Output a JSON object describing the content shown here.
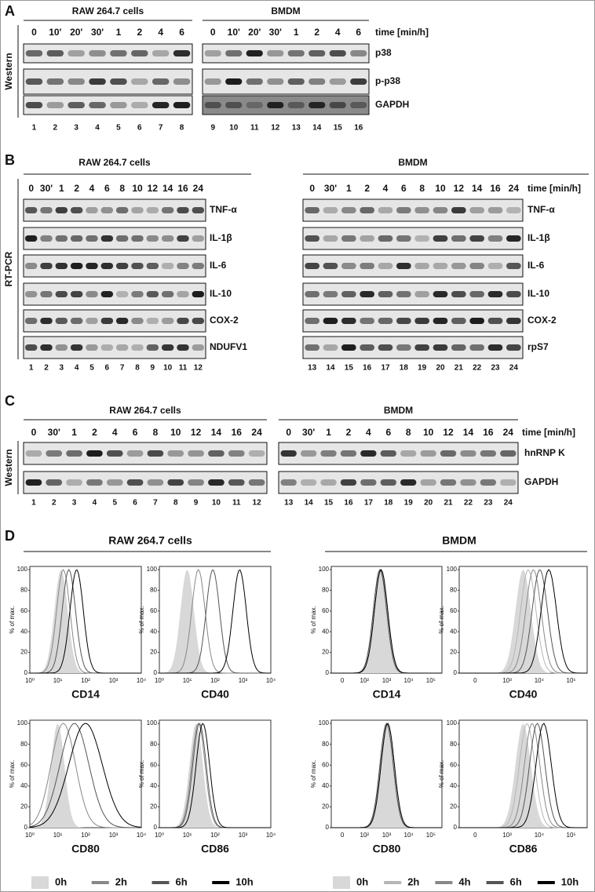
{
  "blots": [
    {
      "label": "A",
      "method": "Western",
      "time_unit": "time [min/h]",
      "groups": [
        {
          "title": "RAW 264.7 cells",
          "times": [
            "0",
            "10'",
            "20'",
            "30'",
            "1",
            "2",
            "4",
            "6"
          ],
          "lanes": [
            "1",
            "2",
            "3",
            "4",
            "5",
            "6",
            "7",
            "8"
          ]
        },
        {
          "title": "BMDM",
          "times": [
            "0",
            "10'",
            "20'",
            "30'",
            "1",
            "2",
            "4",
            "6"
          ],
          "lanes": [
            "9",
            "10",
            "11",
            "12",
            "13",
            "14",
            "15",
            "16"
          ],
          "bands": [
            "p38",
            "p-p38",
            "GAPDH"
          ]
        }
      ]
    },
    {
      "label": "B",
      "method": "RT-PCR",
      "time_unit": "time [min/h]",
      "groups": [
        {
          "title": "RAW 264.7 cells",
          "times": [
            "0",
            "30'",
            "1",
            "2",
            "4",
            "6",
            "8",
            "10",
            "12",
            "14",
            "16",
            "24"
          ],
          "lanes": [
            "1",
            "2",
            "3",
            "4",
            "5",
            "6",
            "7",
            "8",
            "9",
            "10",
            "11",
            "12"
          ],
          "bands": [
            "TNF-α",
            "IL-1β",
            "IL-6",
            "IL-10",
            "COX-2",
            "NDUFV1"
          ]
        },
        {
          "title": "BMDM",
          "times": [
            "0",
            "30'",
            "1",
            "2",
            "4",
            "6",
            "8",
            "10",
            "12",
            "14",
            "16",
            "24"
          ],
          "lanes": [
            "13",
            "14",
            "15",
            "16",
            "17",
            "18",
            "19",
            "20",
            "21",
            "22",
            "23",
            "24"
          ],
          "bands": [
            "TNF-α",
            "IL-1β",
            "IL-6",
            "IL-10",
            "COX-2",
            "rpS7"
          ]
        }
      ]
    },
    {
      "label": "C",
      "method": "Western",
      "time_unit": "time [min/h]",
      "groups": [
        {
          "title": "RAW 264.7 cells",
          "times": [
            "0",
            "30'",
            "1",
            "2",
            "4",
            "6",
            "8",
            "10",
            "12",
            "14",
            "16",
            "24"
          ],
          "lanes": [
            "1",
            "2",
            "3",
            "4",
            "5",
            "6",
            "7",
            "8",
            "9",
            "10",
            "11",
            "12"
          ]
        },
        {
          "title": "BMDM",
          "times": [
            "0",
            "30'",
            "1",
            "2",
            "4",
            "6",
            "8",
            "10",
            "12",
            "14",
            "16",
            "24"
          ],
          "lanes": [
            "13",
            "14",
            "15",
            "16",
            "17",
            "18",
            "19",
            "20",
            "21",
            "22",
            "23",
            "24"
          ],
          "bands": [
            "hnRNP K",
            "GAPDH"
          ]
        }
      ]
    }
  ],
  "flow": {
    "label": "D",
    "y_label": "% of max.",
    "yticks": [
      0,
      20,
      40,
      60,
      80,
      100
    ],
    "groups": [
      {
        "title": "RAW 264.7 cells",
        "legend": [
          "0h",
          "2h",
          "6h",
          "10h"
        ],
        "plots": [
          {
            "marker": "CD14",
            "xticks": [
              "10⁰",
              "10¹",
              "10²",
              "10³",
              "10⁴"
            ]
          },
          {
            "marker": "CD40",
            "xticks": [
              "10⁰",
              "10¹",
              "10²",
              "10³",
              "10⁴"
            ]
          },
          {
            "marker": "CD80",
            "xticks": [
              "10⁰",
              "10¹",
              "10²",
              "10³",
              "10⁴"
            ]
          },
          {
            "marker": "CD86",
            "xticks": [
              "10⁰",
              "10¹",
              "10²",
              "10³",
              "10⁴"
            ]
          }
        ]
      },
      {
        "title": "BMDM",
        "legend": [
          "0h",
          "2h",
          "4h",
          "6h",
          "10h"
        ],
        "plots": [
          {
            "marker": "CD14",
            "xticks": [
              "0",
              "10²",
              "10³",
              "10⁴",
              "10⁵"
            ]
          },
          {
            "marker": "CD40",
            "xticks": [
              "0",
              "10³",
              "10⁴",
              "10⁵"
            ]
          },
          {
            "marker": "CD80",
            "xticks": [
              "0",
              "10²",
              "10³",
              "10⁴",
              "10⁵"
            ]
          },
          {
            "marker": "CD86",
            "xticks": [
              "0",
              "10³",
              "10⁴",
              "10⁵"
            ]
          }
        ]
      }
    ]
  }
}
